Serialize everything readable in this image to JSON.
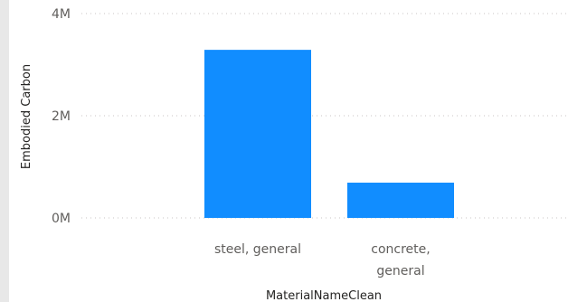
{
  "chart_data": {
    "type": "bar",
    "categories": [
      "steel, general",
      "concrete, general"
    ],
    "category_lines": [
      [
        "steel, general"
      ],
      [
        "concrete,",
        "general"
      ]
    ],
    "values": [
      3290000,
      690000
    ],
    "xlabel": "MaterialNameClean",
    "ylabel": "Embodied Carbon",
    "ylim": [
      0,
      4000000
    ],
    "yticks": [
      0,
      2000000,
      4000000
    ],
    "ytick_labels": [
      "0M",
      "2M",
      "4M"
    ],
    "grid": true,
    "bar_color": "#118DFF"
  }
}
